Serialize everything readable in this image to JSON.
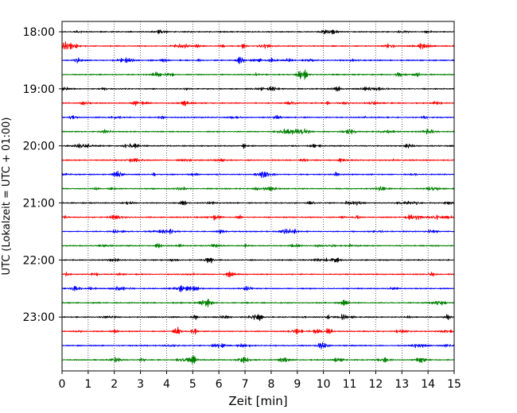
{
  "chart_data": {
    "type": "line",
    "title": "",
    "xlabel": "Zeit  [min]",
    "ylabel": "UTC (Lokalzeit = UTC + 01:00)",
    "xlim": [
      0,
      15
    ],
    "x_ticks": [
      "0",
      "1",
      "2",
      "3",
      "4",
      "5",
      "6",
      "7",
      "8",
      "9",
      "10",
      "11",
      "12",
      "13",
      "14",
      "15"
    ],
    "y_tick_labels": [
      "18:00",
      "19:00",
      "20:00",
      "21:00",
      "22:00",
      "23:00"
    ],
    "row_start": "18:00",
    "row_interval_minutes": 15,
    "row_count": 24,
    "color_cycle": [
      "#000000",
      "#ff0000",
      "#0000ff",
      "#008000"
    ],
    "grid": "vertical dotted at each minute",
    "series_note": "24 seismogram traces, one per 15-minute interval from 18:00 to 23:45 UTC"
  }
}
